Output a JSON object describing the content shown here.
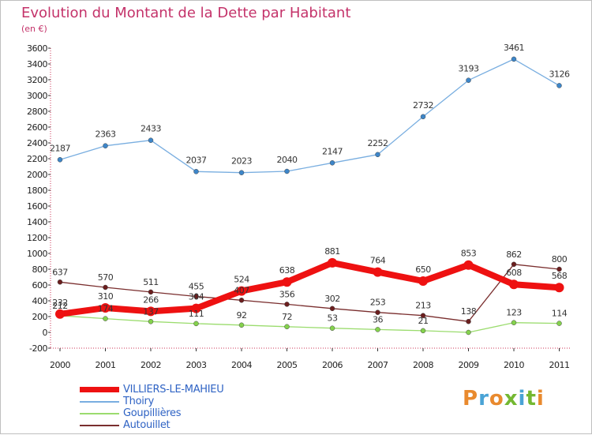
{
  "header": {
    "title": "Evolution du Montant de la Dette par Habitant",
    "unit": "(en €)"
  },
  "logo": {
    "letters": [
      {
        "ch": "P",
        "color": "#e98a2e"
      },
      {
        "ch": "r",
        "color": "#4aa3d6"
      },
      {
        "ch": "o",
        "color": "#e98a2e"
      },
      {
        "ch": "x",
        "color": "#74b832"
      },
      {
        "ch": "i",
        "color": "#4aa3d6"
      },
      {
        "ch": "t",
        "color": "#74b832"
      },
      {
        "ch": "i",
        "color": "#e98a2e"
      }
    ]
  },
  "chart_data": {
    "type": "line",
    "x": [
      "2000",
      "2001",
      "2002",
      "2003",
      "2004",
      "2005",
      "2006",
      "2007",
      "2008",
      "2009",
      "2010",
      "2011"
    ],
    "ylim": [
      -200,
      3600
    ],
    "yticks": [
      -200,
      0,
      200,
      400,
      600,
      800,
      1000,
      1200,
      1400,
      1600,
      1800,
      2000,
      2200,
      2400,
      2600,
      2800,
      3000,
      3200,
      3400,
      3600
    ],
    "grid": false,
    "legend_position": "bottom-left",
    "series": [
      {
        "name": "VILLIERS-LE-MAHIEU",
        "values": [
          232,
          310,
          266,
          304,
          524,
          638,
          881,
          764,
          650,
          853,
          608,
          568
        ],
        "color": "#ee1111",
        "marker": "#ee1111",
        "width": 8
      },
      {
        "name": "Thoiry",
        "values": [
          2187,
          2363,
          2433,
          2037,
          2023,
          2040,
          2147,
          2252,
          2732,
          3193,
          3461,
          3126
        ],
        "color": "#79aee0",
        "marker": "#3d86c9",
        "width": 1.3
      },
      {
        "name": "Goupillières",
        "values": [
          212,
          174,
          137,
          111,
          92,
          72,
          53,
          36,
          21,
          0,
          123,
          114
        ],
        "color": "#9bdc6e",
        "marker": "#84d24c",
        "width": 1.3
      },
      {
        "name": "Autouillet",
        "values": [
          637,
          570,
          511,
          455,
          407,
          356,
          302,
          253,
          213,
          138,
          862,
          800
        ],
        "color": "#7a2e2e",
        "marker": "#6b1e1e",
        "width": 1.3
      }
    ],
    "data_labels": {
      "Thoiry": [
        "2187",
        "2363",
        "2433",
        "2037",
        "2023",
        "2040",
        "2147",
        "2252",
        "2732",
        "3193",
        "3461",
        "3126"
      ],
      "Autouillet": [
        "637",
        "570",
        "511",
        "455",
        "407",
        "356",
        "302",
        "253",
        "213",
        "138",
        "862",
        "800"
      ],
      "VILLIERS-LE-MAHIEU": [
        "232",
        "310",
        "266",
        "304",
        "524",
        "638",
        "881",
        "764",
        "650",
        "853",
        "608",
        "568"
      ],
      "Goupillières": [
        "212",
        "174",
        "137",
        "111",
        "92",
        "72",
        "53",
        "36",
        "21",
        "",
        "123",
        "114"
      ]
    }
  }
}
